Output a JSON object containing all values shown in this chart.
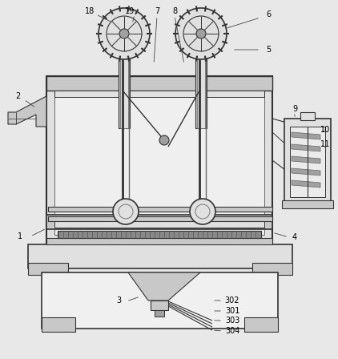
{
  "bg_color": "#e8e8e8",
  "line_color": "#666666",
  "dark_line": "#333333",
  "fig_w": 4.22,
  "fig_h": 4.48,
  "dpi": 100
}
